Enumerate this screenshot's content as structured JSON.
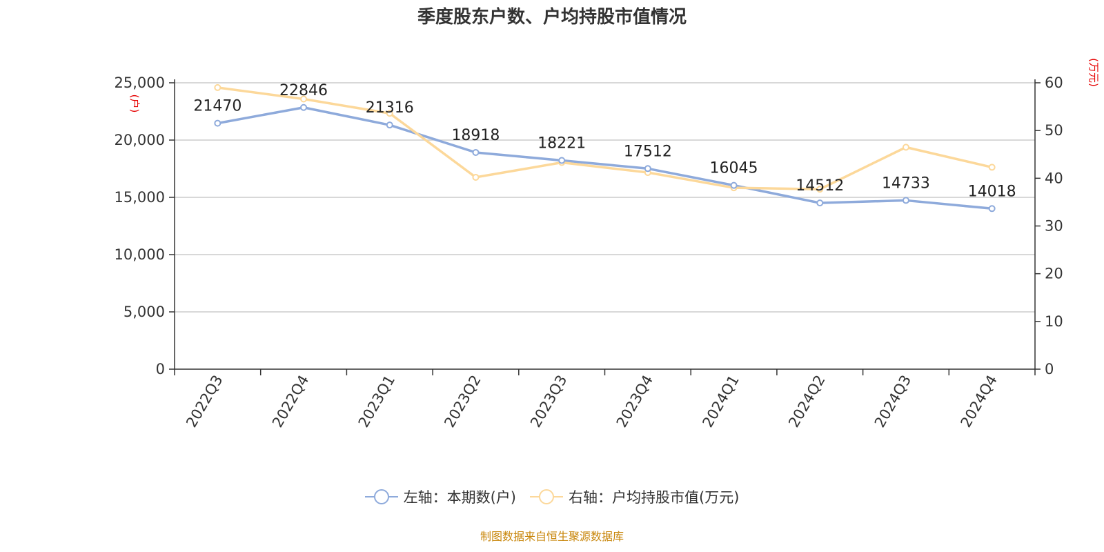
{
  "chart_data": {
    "type": "line",
    "title": "季度股东户数、户均持股市值情况",
    "categories": [
      "2022Q3",
      "2022Q4",
      "2023Q1",
      "2023Q2",
      "2023Q3",
      "2023Q4",
      "2024Q1",
      "2024Q2",
      "2024Q3",
      "2024Q4"
    ],
    "left_axis": {
      "unit": "(户)",
      "ylim": [
        0,
        25000
      ],
      "ticks": [
        "0",
        "5,000",
        "10,000",
        "15,000",
        "20,000",
        "25,000"
      ],
      "tick_values": [
        0,
        5000,
        10000,
        15000,
        20000,
        25000
      ]
    },
    "right_axis": {
      "unit": "(万元)",
      "ylim": [
        0,
        60
      ],
      "ticks": [
        "0",
        "10",
        "20",
        "30",
        "40",
        "50",
        "60"
      ],
      "tick_values": [
        0,
        10,
        20,
        30,
        40,
        50,
        60
      ]
    },
    "series": [
      {
        "name": "左轴：本期数(户)",
        "axis": "left",
        "color": "#8eaadb",
        "values": [
          21470,
          22846,
          21316,
          18918,
          18221,
          17512,
          16045,
          14512,
          14733,
          14018
        ],
        "labels": [
          "21470",
          "22846",
          "21316",
          "18918",
          "18221",
          "17512",
          "16045",
          "14512",
          "14733",
          "14018"
        ]
      },
      {
        "name": "右轴：户均持股市值(万元)",
        "axis": "right",
        "color": "#fcd89a",
        "values": [
          59.0,
          56.6,
          53.6,
          40.2,
          43.3,
          41.2,
          38.0,
          37.7,
          46.5,
          42.3
        ]
      }
    ],
    "grid": true,
    "legend_position": "bottom"
  },
  "source_note": "制图数据来自恒生聚源数据库"
}
